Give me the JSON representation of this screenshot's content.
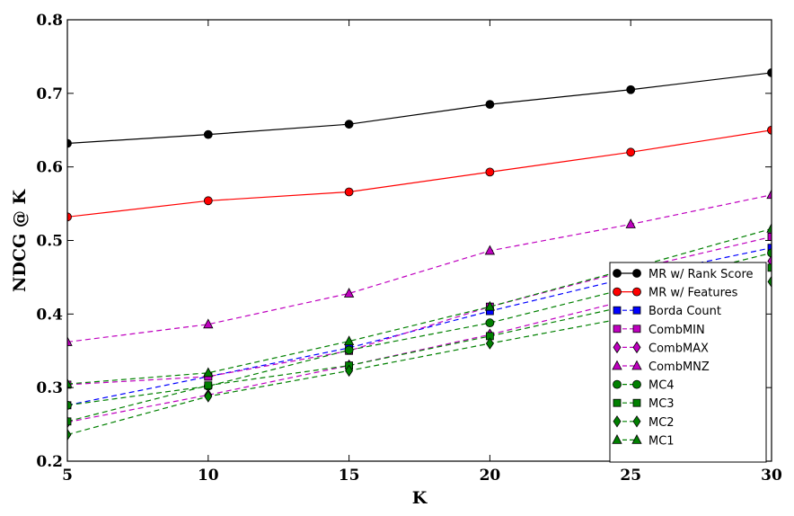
{
  "chart_data": {
    "type": "line",
    "xlabel": "K",
    "ylabel": "NDCG @ K",
    "x": [
      5,
      10,
      15,
      20,
      25,
      30
    ],
    "xlim": [
      5,
      30
    ],
    "ylim": [
      0.2,
      0.8
    ],
    "x_ticks": [
      "5",
      "10",
      "15",
      "20",
      "25",
      "30"
    ],
    "y_ticks": [
      "0.2",
      "0.3",
      "0.4",
      "0.5",
      "0.6",
      "0.7",
      "0.8"
    ],
    "grid": false,
    "legend_position": "lower-right",
    "series": [
      {
        "name": "MR w/ Rank Score",
        "values": [
          0.632,
          0.644,
          0.658,
          0.685,
          0.705,
          0.728
        ],
        "color": "#000000",
        "marker": "circle",
        "linestyle": "solid"
      },
      {
        "name": "MR w/ Features",
        "values": [
          0.532,
          0.554,
          0.566,
          0.593,
          0.62,
          0.65
        ],
        "color": "#ff0000",
        "marker": "circle",
        "linestyle": "solid"
      },
      {
        "name": "Borda Count",
        "values": [
          0.276,
          0.315,
          0.354,
          0.404,
          0.45,
          0.49
        ],
        "color": "#0000ff",
        "marker": "square",
        "linestyle": "dashed"
      },
      {
        "name": "CombMIN",
        "values": [
          0.304,
          0.315,
          0.35,
          0.41,
          0.46,
          0.505
        ],
        "color": "#bf00bf",
        "marker": "square",
        "linestyle": "dashed"
      },
      {
        "name": "CombMAX",
        "values": [
          0.253,
          0.29,
          0.33,
          0.372,
          0.42,
          0.472
        ],
        "color": "#bf00bf",
        "marker": "diamond",
        "linestyle": "dashed"
      },
      {
        "name": "CombMNZ",
        "values": [
          0.362,
          0.386,
          0.428,
          0.486,
          0.522,
          0.562
        ],
        "color": "#bf00bf",
        "marker": "triangle",
        "linestyle": "dashed"
      },
      {
        "name": "MC4",
        "values": [
          0.276,
          0.302,
          0.351,
          0.388,
          0.436,
          0.483
        ],
        "color": "#008000",
        "marker": "circle",
        "linestyle": "dashed"
      },
      {
        "name": "MC3",
        "values": [
          0.254,
          0.303,
          0.33,
          0.37,
          0.412,
          0.463
        ],
        "color": "#008000",
        "marker": "square",
        "linestyle": "dashed"
      },
      {
        "name": "MC2",
        "values": [
          0.236,
          0.288,
          0.323,
          0.36,
          0.396,
          0.444
        ],
        "color": "#008000",
        "marker": "diamond",
        "linestyle": "dashed"
      },
      {
        "name": "MC1",
        "values": [
          0.305,
          0.32,
          0.363,
          0.41,
          0.462,
          0.516
        ],
        "color": "#008000",
        "marker": "triangle",
        "linestyle": "dashed"
      }
    ]
  }
}
